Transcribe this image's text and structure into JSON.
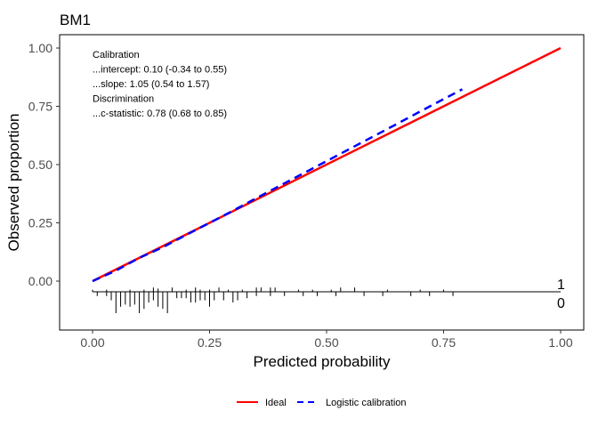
{
  "chart_data": {
    "type": "line",
    "title": "BM1",
    "xlabel": "Predicted probability",
    "ylabel": "Observed proportion",
    "xlim": [
      0,
      1
    ],
    "ylim": [
      -0.1,
      1.0
    ],
    "xticks": [
      "0.00",
      "0.25",
      "0.50",
      "0.75",
      "1.00"
    ],
    "yticks": [
      "0.00",
      "0.25",
      "0.50",
      "0.75",
      "1.00"
    ],
    "grid": false,
    "legend_position": "bottom",
    "series": [
      {
        "name": "Ideal",
        "color": "#ff0000",
        "style": "solid",
        "x": [
          0.0,
          1.0
        ],
        "y": [
          0.0,
          1.0
        ]
      },
      {
        "name": "Logistic calibration",
        "color": "#0000ff",
        "style": "dashed",
        "x": [
          0.0,
          0.05,
          0.1,
          0.15,
          0.2,
          0.25,
          0.3,
          0.35,
          0.4,
          0.45,
          0.5,
          0.55,
          0.6,
          0.65,
          0.7,
          0.75,
          0.79
        ],
        "y": [
          0.0,
          0.045,
          0.1,
          0.145,
          0.198,
          0.25,
          0.302,
          0.356,
          0.409,
          0.462,
          0.515,
          0.568,
          0.621,
          0.674,
          0.728,
          0.781,
          0.823
        ]
      }
    ],
    "annotations": [
      "Calibration",
      "...intercept: 0.10 (-0.34 to 0.55)",
      "...slope: 1.05 (0.54 to 1.57)",
      "Discrimination",
      "...c-statistic: 0.78 (0.68 to 0.85)"
    ],
    "rug": {
      "label_events": "1",
      "label_nonevents": "0",
      "events": [
        {
          "x": 0.0,
          "h": 0.2
        },
        {
          "x": 0.03,
          "h": 0.2
        },
        {
          "x": 0.08,
          "h": 0.2
        },
        {
          "x": 0.11,
          "h": 0.2
        },
        {
          "x": 0.13,
          "h": 0.4
        },
        {
          "x": 0.14,
          "h": 0.3
        },
        {
          "x": 0.17,
          "h": 0.4
        },
        {
          "x": 0.2,
          "h": 0.2
        },
        {
          "x": 0.22,
          "h": 0.4
        },
        {
          "x": 0.23,
          "h": 0.2
        },
        {
          "x": 0.25,
          "h": 0.2
        },
        {
          "x": 0.27,
          "h": 0.4
        },
        {
          "x": 0.29,
          "h": 0.2
        },
        {
          "x": 0.32,
          "h": 0.2
        },
        {
          "x": 0.35,
          "h": 0.4
        },
        {
          "x": 0.36,
          "h": 0.4
        },
        {
          "x": 0.38,
          "h": 0.4
        },
        {
          "x": 0.39,
          "h": 0.4
        },
        {
          "x": 0.44,
          "h": 0.2
        },
        {
          "x": 0.47,
          "h": 0.2
        },
        {
          "x": 0.51,
          "h": 0.2
        },
        {
          "x": 0.53,
          "h": 0.4
        },
        {
          "x": 0.56,
          "h": 0.4
        },
        {
          "x": 0.63,
          "h": 0.2
        },
        {
          "x": 0.7,
          "h": 0.2
        },
        {
          "x": 0.75,
          "h": 0.2
        }
      ],
      "nonevents": [
        {
          "x": 0.01,
          "h": 0.2
        },
        {
          "x": 0.03,
          "h": 0.2
        },
        {
          "x": 0.04,
          "h": 0.4
        },
        {
          "x": 0.05,
          "h": 1.0
        },
        {
          "x": 0.06,
          "h": 0.7
        },
        {
          "x": 0.07,
          "h": 0.6
        },
        {
          "x": 0.08,
          "h": 0.7
        },
        {
          "x": 0.09,
          "h": 0.6
        },
        {
          "x": 0.1,
          "h": 1.0
        },
        {
          "x": 0.11,
          "h": 0.8
        },
        {
          "x": 0.12,
          "h": 0.5
        },
        {
          "x": 0.13,
          "h": 0.4
        },
        {
          "x": 0.14,
          "h": 0.7
        },
        {
          "x": 0.15,
          "h": 0.8
        },
        {
          "x": 0.16,
          "h": 1.0
        },
        {
          "x": 0.18,
          "h": 0.3
        },
        {
          "x": 0.19,
          "h": 0.3
        },
        {
          "x": 0.2,
          "h": 0.3
        },
        {
          "x": 0.21,
          "h": 0.5
        },
        {
          "x": 0.22,
          "h": 0.5
        },
        {
          "x": 0.23,
          "h": 0.4
        },
        {
          "x": 0.24,
          "h": 0.4
        },
        {
          "x": 0.25,
          "h": 0.7
        },
        {
          "x": 0.26,
          "h": 0.4
        },
        {
          "x": 0.28,
          "h": 0.4
        },
        {
          "x": 0.3,
          "h": 0.5
        },
        {
          "x": 0.31,
          "h": 0.4
        },
        {
          "x": 0.33,
          "h": 0.3
        },
        {
          "x": 0.35,
          "h": 0.2
        },
        {
          "x": 0.38,
          "h": 0.2
        },
        {
          "x": 0.41,
          "h": 0.2
        },
        {
          "x": 0.45,
          "h": 0.2
        },
        {
          "x": 0.48,
          "h": 0.2
        },
        {
          "x": 0.52,
          "h": 0.2
        },
        {
          "x": 0.58,
          "h": 0.2
        },
        {
          "x": 0.62,
          "h": 0.2
        },
        {
          "x": 0.68,
          "h": 0.2
        },
        {
          "x": 0.72,
          "h": 0.2
        },
        {
          "x": 0.77,
          "h": 0.2
        }
      ]
    }
  }
}
